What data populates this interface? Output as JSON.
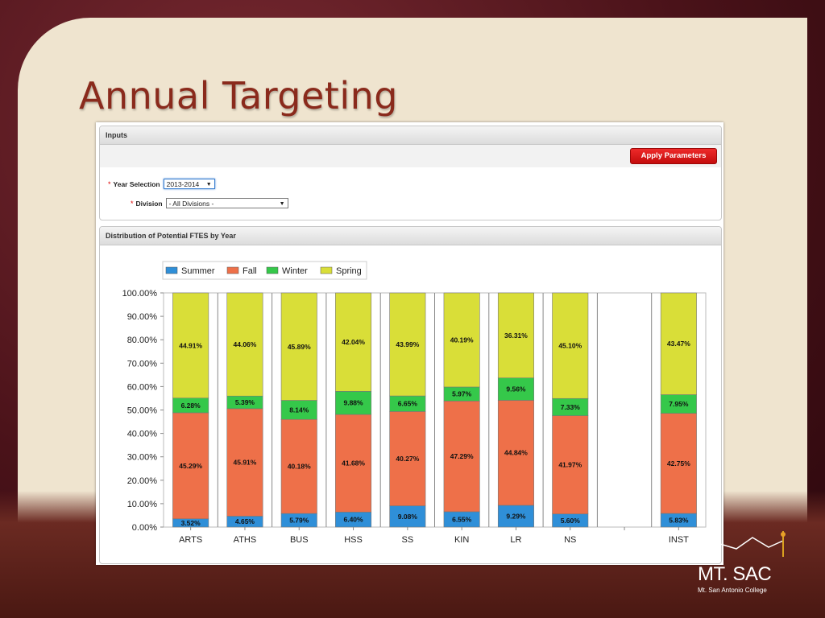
{
  "slide": {
    "title": "Annual Targeting"
  },
  "inputs": {
    "header": "Inputs",
    "apply_label": "Apply Parameters",
    "required_mark": "*",
    "year_label": "Year Selection",
    "year_value": "2013-2014",
    "division_label": "Division",
    "division_value": "- All Divisions -",
    "dropdown_arrow": "▼"
  },
  "chart_panel": {
    "header": "Distribution of Potential FTES by Year"
  },
  "logo": {
    "main": "MT. SAC",
    "sub": "Mt. San Antonio College"
  },
  "colors": {
    "Summer": "#2f8fd8",
    "Fall": "#ee7049",
    "Winter": "#35c84a",
    "Spring": "#d9de38",
    "accent": "#d81a1a"
  },
  "chart_data": {
    "type": "bar",
    "stacked": true,
    "categories": [
      "ARTS",
      "ATHS",
      "BUS",
      "HSS",
      "SS",
      "KIN",
      "LR",
      "NS",
      "",
      "INST"
    ],
    "series": [
      {
        "name": "Summer",
        "values": [
          3.52,
          4.65,
          5.79,
          6.4,
          9.08,
          6.55,
          9.29,
          5.6,
          null,
          5.83
        ]
      },
      {
        "name": "Fall",
        "values": [
          45.29,
          45.91,
          40.18,
          41.68,
          40.27,
          47.29,
          44.84,
          41.97,
          null,
          42.75
        ]
      },
      {
        "name": "Winter",
        "values": [
          6.28,
          5.39,
          8.14,
          9.88,
          6.65,
          5.97,
          9.56,
          7.33,
          null,
          7.95
        ]
      },
      {
        "name": "Spring",
        "values": [
          44.91,
          44.06,
          45.89,
          42.04,
          43.99,
          40.19,
          36.31,
          45.1,
          null,
          43.47
        ]
      }
    ],
    "labels": {
      "Summer": [
        "3.52%",
        "4.65%",
        "5.79%",
        "6.40%",
        "9.08%",
        "6.55%",
        "9.29%",
        "5.60%",
        "",
        "5.83%"
      ],
      "Fall": [
        "45.29%",
        "45.91%",
        "40.18%",
        "41.68%",
        "40.27%",
        "47.29%",
        "44.84%",
        "41.97%",
        "",
        "42.75%"
      ],
      "Winter": [
        "6.28%",
        "5.39%",
        "8.14%",
        "9.88%",
        "6.65%",
        "5.97%",
        "9.56%",
        "7.33%",
        "",
        "7.95%"
      ],
      "Spring": [
        "44.91%",
        "44.06%",
        "45.89%",
        "42.04%",
        "43.99%",
        "40.19%",
        "36.31%",
        "45.10%",
        "",
        "43.47%"
      ]
    },
    "ylim": [
      0,
      100
    ],
    "yticks": [
      0,
      10,
      20,
      30,
      40,
      50,
      60,
      70,
      80,
      90,
      100
    ],
    "ytick_labels": [
      "0.00%",
      "10.00%",
      "20.00%",
      "30.00%",
      "40.00%",
      "50.00%",
      "60.00%",
      "70.00%",
      "80.00%",
      "90.00%",
      "100.00%"
    ],
    "legend_position": "top-left",
    "grid": false
  }
}
